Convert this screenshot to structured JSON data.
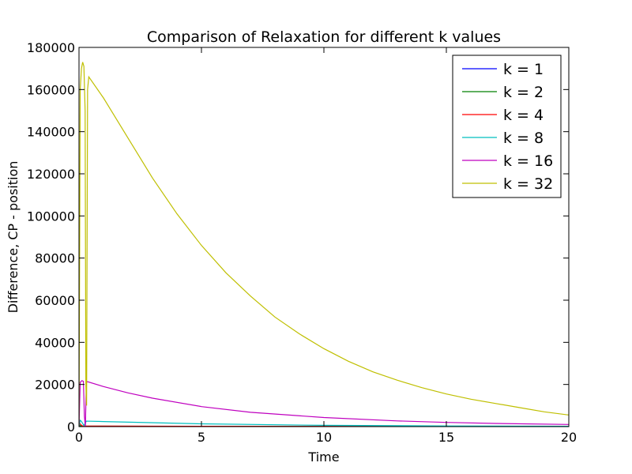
{
  "chart_data": {
    "type": "line",
    "title": "Comparison of Relaxation for different k values",
    "xlabel": "Time",
    "ylabel": "Difference, CP - position",
    "xlim": [
      0,
      20
    ],
    "ylim": [
      0,
      180000
    ],
    "x_ticks": [
      0,
      5,
      10,
      15,
      20
    ],
    "y_ticks": [
      0,
      20000,
      40000,
      60000,
      80000,
      100000,
      120000,
      140000,
      160000,
      180000
    ],
    "legend_position": "top-right",
    "grid": false,
    "series": [
      {
        "name": "k = 1",
        "color": "#0000ff",
        "x": [
          0,
          0.02,
          0.05,
          0.1,
          1,
          5,
          10,
          15,
          20
        ],
        "y": [
          0,
          300,
          100,
          60,
          50,
          30,
          20,
          15,
          10
        ]
      },
      {
        "name": "k = 2",
        "color": "#008000",
        "x": [
          0,
          0.02,
          0.05,
          0.1,
          1,
          5,
          10,
          15,
          20
        ],
        "y": [
          0,
          800,
          400,
          250,
          200,
          120,
          80,
          50,
          30
        ]
      },
      {
        "name": "k = 4",
        "color": "#ff0000",
        "x": [
          0,
          0.03,
          0.06,
          0.1,
          0.15,
          1,
          5,
          10,
          15,
          20
        ],
        "y": [
          0,
          1500,
          1200,
          600,
          300,
          250,
          150,
          100,
          60,
          40
        ]
      },
      {
        "name": "k = 8",
        "color": "#00bfbf",
        "x": [
          0,
          0.05,
          0.1,
          0.2,
          0.3,
          1,
          5,
          10,
          15,
          20
        ],
        "y": [
          0,
          3000,
          2500,
          500,
          2600,
          2400,
          1300,
          600,
          300,
          150
        ]
      },
      {
        "name": "k = 16",
        "color": "#bf00bf",
        "x": [
          0,
          0.05,
          0.12,
          0.18,
          0.22,
          0.26,
          0.3,
          0.35,
          1,
          2,
          3,
          5,
          7,
          10,
          13,
          15,
          17,
          20
        ],
        "y": [
          0,
          21000,
          21800,
          21500,
          5000,
          0,
          21000,
          21300,
          19000,
          16000,
          13500,
          9500,
          6800,
          4300,
          2700,
          2000,
          1500,
          1000
        ]
      },
      {
        "name": "k = 32",
        "color": "#bfbf00",
        "x": [
          0,
          0.05,
          0.1,
          0.15,
          0.2,
          0.25,
          0.28,
          0.31,
          0.35,
          0.4,
          1,
          2,
          3,
          4,
          5,
          6,
          7,
          8,
          9,
          10,
          11,
          12,
          13,
          14,
          15,
          16,
          17,
          18,
          19,
          20
        ],
        "y": [
          0,
          160000,
          170000,
          173000,
          171000,
          150000,
          20000,
          10000,
          160000,
          166000,
          156000,
          137000,
          118000,
          101000,
          86000,
          73000,
          62000,
          52000,
          44000,
          37000,
          31000,
          26000,
          22000,
          18500,
          15500,
          13000,
          11000,
          9000,
          7000,
          5500
        ]
      }
    ]
  }
}
